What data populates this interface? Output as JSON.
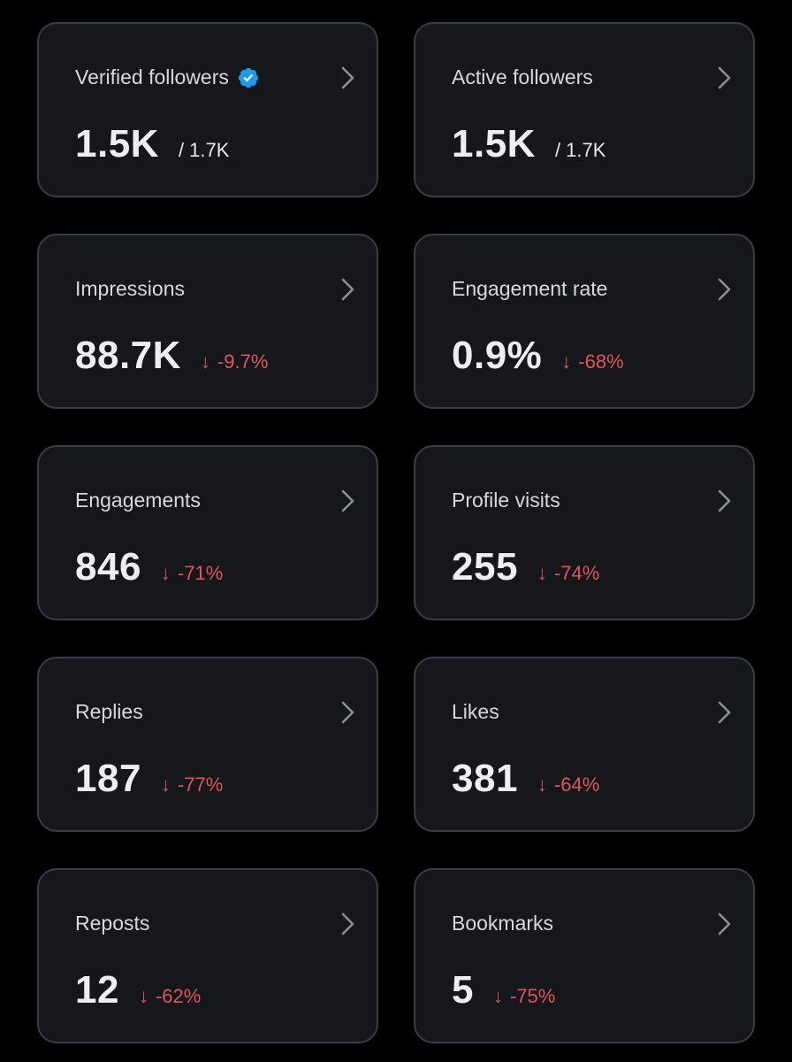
{
  "colors": {
    "background": "#000000",
    "card_background": "#16171b",
    "card_border": "#3a3d43",
    "negative_change": "#e0555c",
    "verified_badge": "#1d9bf0"
  },
  "cards": [
    {
      "label": "Verified followers",
      "value": "1.5K",
      "total": "/ 1.7K",
      "verified_badge": true
    },
    {
      "label": "Active followers",
      "value": "1.5K",
      "total": "/ 1.7K"
    },
    {
      "label": "Impressions",
      "value": "88.7K",
      "change_arrow": "↓",
      "change": "-9.7%"
    },
    {
      "label": "Engagement rate",
      "value": "0.9%",
      "change_arrow": "↓",
      "change": "-68%"
    },
    {
      "label": "Engagements",
      "value": "846",
      "change_arrow": "↓",
      "change": "-71%"
    },
    {
      "label": "Profile visits",
      "value": "255",
      "change_arrow": "↓",
      "change": "-74%"
    },
    {
      "label": "Replies",
      "value": "187",
      "change_arrow": "↓",
      "change": "-77%"
    },
    {
      "label": "Likes",
      "value": "381",
      "change_arrow": "↓",
      "change": "-64%"
    },
    {
      "label": "Reposts",
      "value": "12",
      "change_arrow": "↓",
      "change": "-62%"
    },
    {
      "label": "Bookmarks",
      "value": "5",
      "change_arrow": "↓",
      "change": "-75%"
    }
  ],
  "icons": {
    "chevron": "chevron-right-icon",
    "verified": "verified-badge-icon"
  }
}
